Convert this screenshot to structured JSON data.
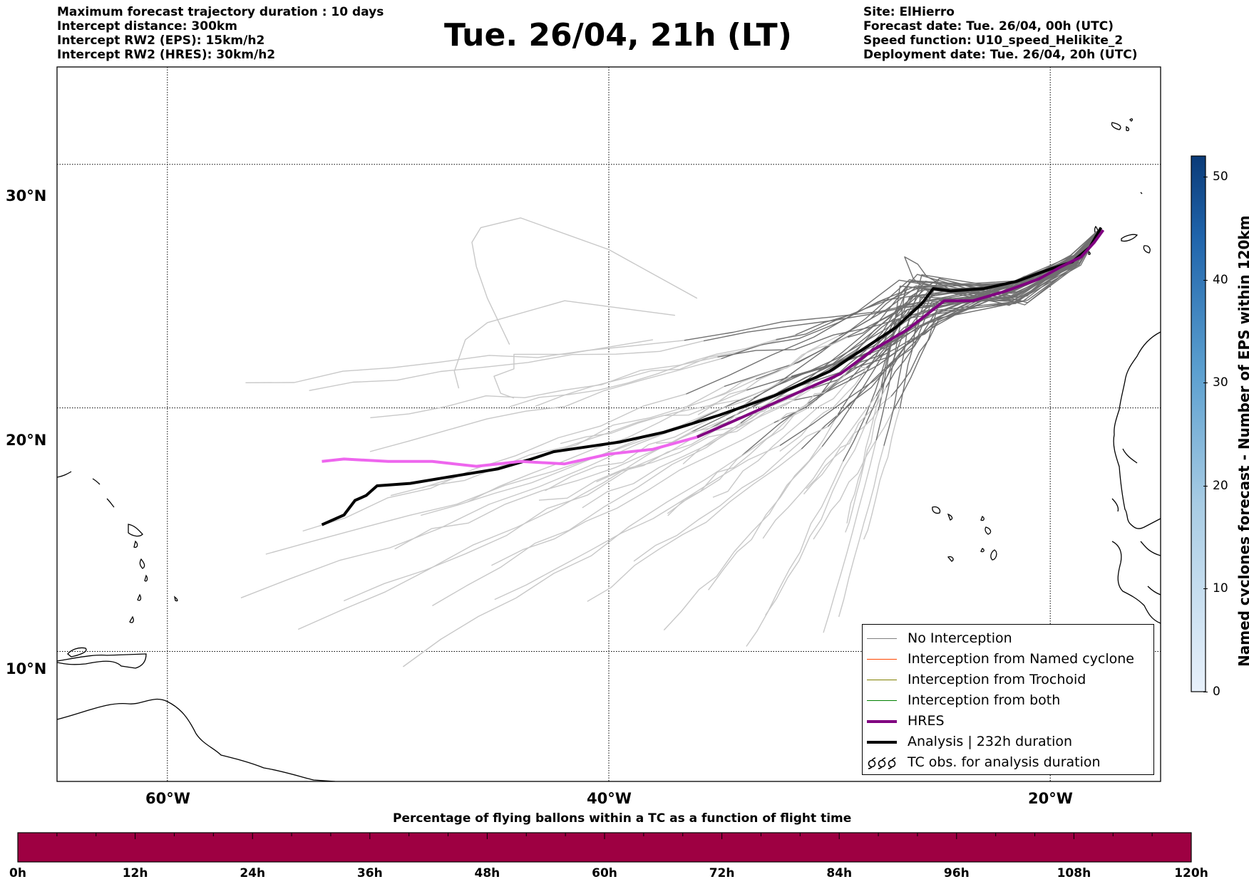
{
  "header": {
    "left_lines": [
      "Maximum forecast trajectory duration : 10 days",
      "Intercept distance: 300km",
      "Intercept RW2 (EPS):  15km/h2",
      "Intercept RW2 (HRES): 30km/h2"
    ],
    "title": "Tue. 26/04, 21h (LT)",
    "right_lines": [
      "Site: ElHierro",
      "Forecast date: Tue. 26/04, 00h (UTC)",
      "Speed function: U10_speed_Helikite_2",
      "Deployment date: Tue. 26/04, 20h (UTC)"
    ]
  },
  "map": {
    "lat_labels": [
      "30°N",
      "20°N",
      "10°N"
    ],
    "lon_labels": [
      "60°W",
      "40°W",
      "20°W"
    ],
    "lon_range": [
      -65,
      -15
    ],
    "lat_range": [
      4.66,
      34.0
    ]
  },
  "colorbar": {
    "title": "Named cyclones forecast - Number of EPS within 120km",
    "ticks": [
      "0",
      "10",
      "20",
      "30",
      "40",
      "50"
    ],
    "range": [
      0,
      52
    ],
    "color_low": "#e8f1fb",
    "color_high": "#0b3b78"
  },
  "legend": {
    "items": [
      {
        "label": "No Interception",
        "color": "#808080",
        "width": 1.5,
        "symbol": "line"
      },
      {
        "label": "Interception from Named cyclone",
        "color": "#ff4500",
        "width": 1.5,
        "symbol": "line"
      },
      {
        "label": "Interception from Trochoid",
        "color": "#808000",
        "width": 1.5,
        "symbol": "line"
      },
      {
        "label": "Interception from both",
        "color": "#008000",
        "width": 1.5,
        "symbol": "line"
      },
      {
        "label": "HRES",
        "color": "#800080",
        "width": 4,
        "symbol": "line"
      },
      {
        "label": "Analysis | 232h duration",
        "color": "#000000",
        "width": 4,
        "symbol": "line"
      },
      {
        "label": "TC obs. for analysis duration",
        "color": "#000000",
        "width": 1,
        "symbol": "cyclone"
      }
    ]
  },
  "timebar": {
    "title": "Percentage of flying ballons within a TC as a function of flight time",
    "ticks": [
      "0h",
      "12h",
      "24h",
      "36h",
      "48h",
      "60h",
      "72h",
      "84h",
      "96h",
      "108h",
      "120h"
    ],
    "color": "#9e0042"
  },
  "chart_data": {
    "type": "line",
    "xlabel": "",
    "ylabel": "",
    "xlim": [
      -65,
      -15
    ],
    "ylim": [
      4.66,
      34.0
    ],
    "grid": true,
    "legend_placement": "lower-right",
    "series": [
      {
        "name": "Analysis | 232h duration",
        "color": "#000000",
        "points": [
          [
            -53.0,
            15.2
          ],
          [
            -52.0,
            15.6
          ],
          [
            -51.5,
            16.2
          ],
          [
            -51.0,
            16.4
          ],
          [
            -50.5,
            16.8
          ],
          [
            -49.0,
            16.9
          ],
          [
            -47.0,
            17.2
          ],
          [
            -45.0,
            17.5
          ],
          [
            -43.5,
            17.9
          ],
          [
            -42.5,
            18.2
          ],
          [
            -41.0,
            18.4
          ],
          [
            -39.5,
            18.6
          ],
          [
            -37.5,
            19.0
          ],
          [
            -35.0,
            19.7
          ],
          [
            -32.5,
            20.5
          ],
          [
            -30.0,
            21.5
          ],
          [
            -28.5,
            22.4
          ],
          [
            -27.0,
            23.3
          ],
          [
            -25.8,
            24.3
          ],
          [
            -25.3,
            24.9
          ],
          [
            -24.5,
            24.8
          ],
          [
            -23.0,
            24.9
          ],
          [
            -21.5,
            25.2
          ],
          [
            -20.0,
            25.7
          ],
          [
            -19.0,
            26.0
          ],
          [
            -18.2,
            26.6
          ],
          [
            -17.7,
            27.4
          ]
        ]
      },
      {
        "name": "HRES",
        "color": "#800080",
        "points": [
          [
            -36.0,
            18.8
          ],
          [
            -34.0,
            19.6
          ],
          [
            -31.5,
            20.6
          ],
          [
            -29.5,
            21.4
          ],
          [
            -28.0,
            22.4
          ],
          [
            -26.5,
            23.2
          ],
          [
            -25.5,
            23.9
          ],
          [
            -24.8,
            24.4
          ],
          [
            -23.5,
            24.4
          ],
          [
            -22.0,
            24.8
          ],
          [
            -20.5,
            25.3
          ],
          [
            -19.5,
            25.8
          ],
          [
            -18.6,
            26.2
          ],
          [
            -18.0,
            26.8
          ],
          [
            -17.6,
            27.3
          ]
        ]
      },
      {
        "name": "HRES",
        "color": "#ee66ee",
        "points": [
          [
            -53.0,
            17.8
          ],
          [
            -52.0,
            17.9
          ],
          [
            -50.0,
            17.8
          ],
          [
            -48.0,
            17.8
          ],
          [
            -46.0,
            17.6
          ],
          [
            -44.0,
            17.8
          ],
          [
            -42.0,
            17.7
          ],
          [
            -40.0,
            18.1
          ],
          [
            -38.0,
            18.3
          ],
          [
            -36.0,
            18.8
          ]
        ]
      }
    ]
  }
}
